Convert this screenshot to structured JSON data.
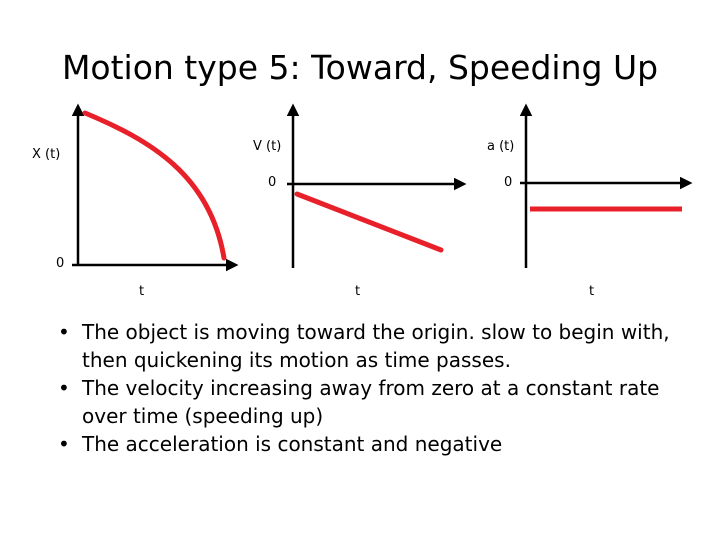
{
  "title": "Motion type 5: Toward, Speeding Up",
  "graphs": {
    "position": {
      "y_label": "X (t)",
      "x_label": "t",
      "origin_label": "0"
    },
    "velocity": {
      "y_label": "V (t)",
      "x_label": "t",
      "zero_label": "0"
    },
    "acceleration": {
      "y_label": "a (t)",
      "x_label": "t",
      "zero_label": "0"
    }
  },
  "colors": {
    "axis": "#000000",
    "curve": "#e8202a"
  },
  "bullets": [
    {
      "marker": "•",
      "text": "The object is moving toward the origin. slow to begin with, then quickening its motion as time passes."
    },
    {
      "marker": "•",
      "text": "The velocity increasing away from zero at a constant rate over time (speeding up)"
    },
    {
      "marker": "•",
      "text": "The acceleration is constant and negative"
    }
  ]
}
